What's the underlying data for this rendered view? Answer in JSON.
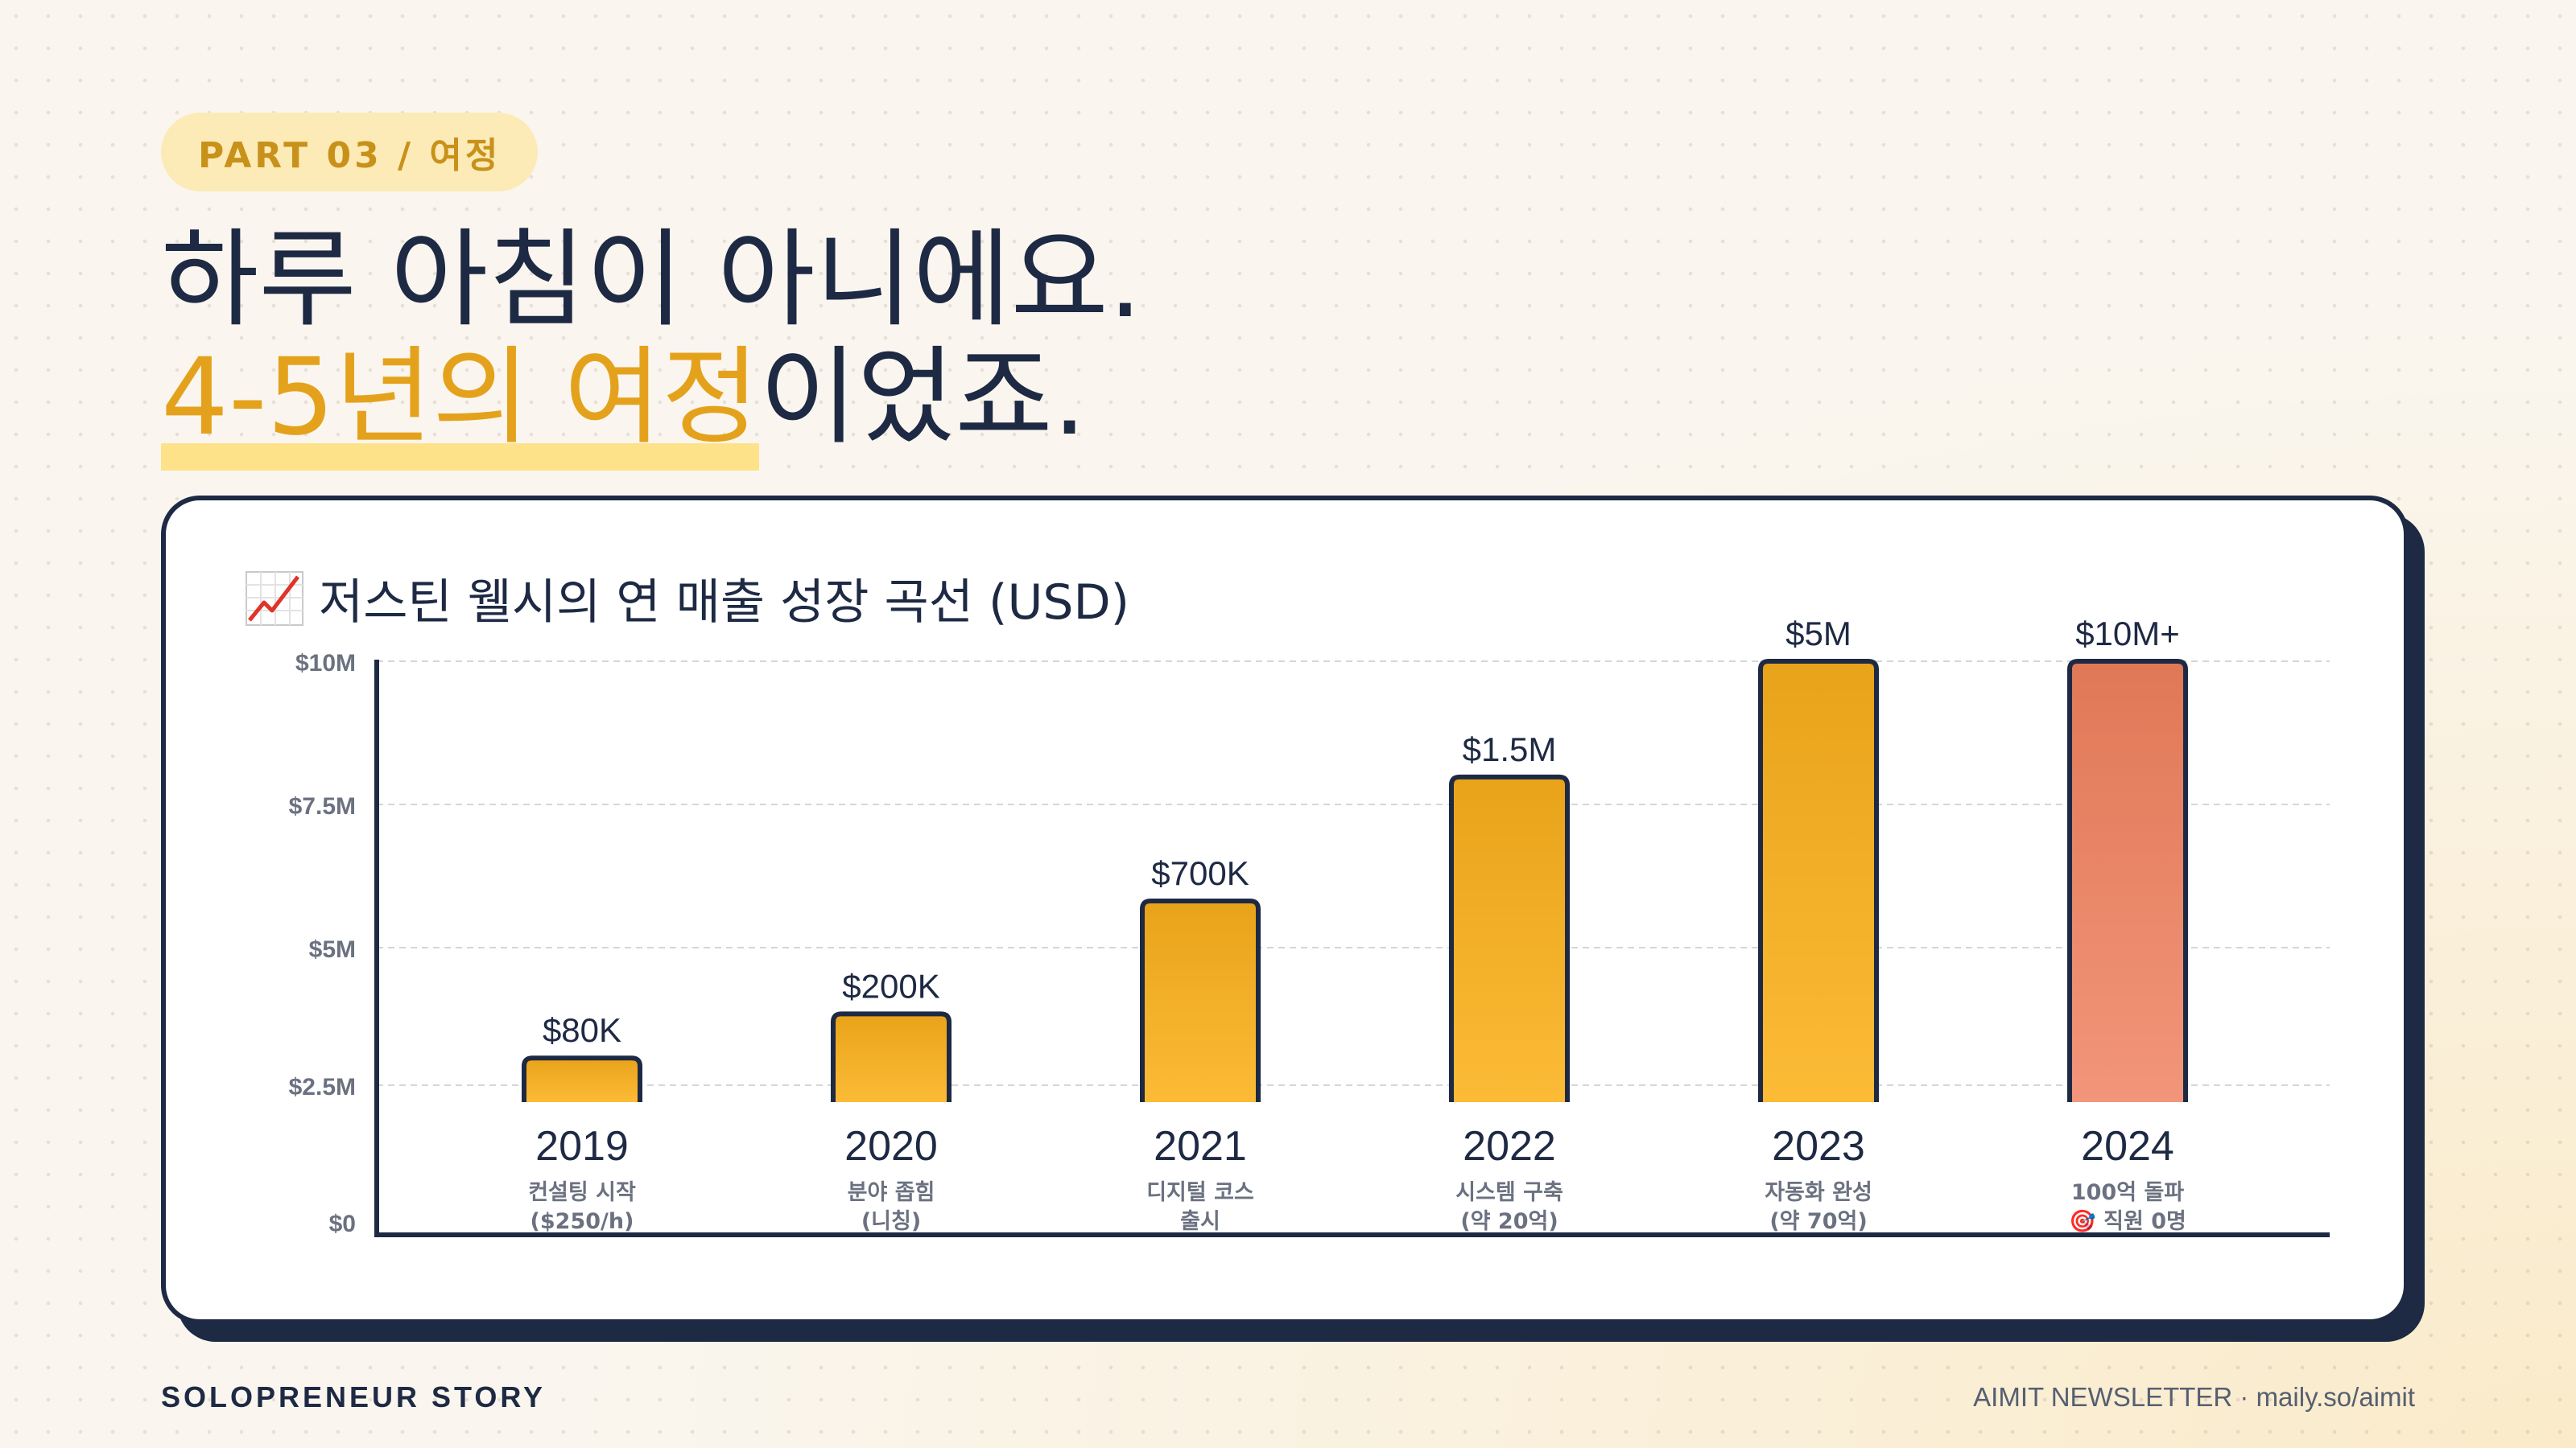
{
  "header": {
    "tag": "PART 03 / 여정",
    "title_line1": "하루 아침이 아니에요.",
    "title_line2_highlight": "4-5년의 여정",
    "title_line2_rest": "이었죠."
  },
  "chart_data": {
    "type": "bar",
    "title": "저스틴 웰시의 연 매출 성장 곡선 (USD)",
    "title_icon": "chart-increasing-icon",
    "categories": [
      "2019",
      "2020",
      "2021",
      "2022",
      "2023",
      "2024"
    ],
    "captions": [
      [
        "컨설팅 시작",
        "($250/h)"
      ],
      [
        "분야 좁힘",
        "(니칭)"
      ],
      [
        "디지털 코스",
        "출시"
      ],
      [
        "시스템 구축",
        "(약 20억)"
      ],
      [
        "자동화 완성",
        "(약 70억)"
      ],
      [
        "100억 돌파",
        "🎯 직원 0명"
      ]
    ],
    "value_labels": [
      "$80K",
      "$200K",
      "$700K",
      "$1.5M",
      "$5M",
      "$10M+"
    ],
    "bar_heights_on_axis": [
      1.6,
      3.2,
      7.3,
      11.8,
      16,
      16
    ],
    "axis_scale_note": "bars drawn on a stylized axis, not to scale with value labels",
    "y_ticks": [
      "$0",
      "$2.5M",
      "$5M",
      "$7.5M",
      "$10M"
    ],
    "ylim": [
      0,
      16
    ],
    "grid": true,
    "bar_color": "#f0a91e",
    "highlight_bar_color": "#e8795a"
  },
  "footer": {
    "left": "SOLOPRENEUR STORY",
    "right": "AIMIT NEWSLETTER · maily.so/aimit"
  }
}
